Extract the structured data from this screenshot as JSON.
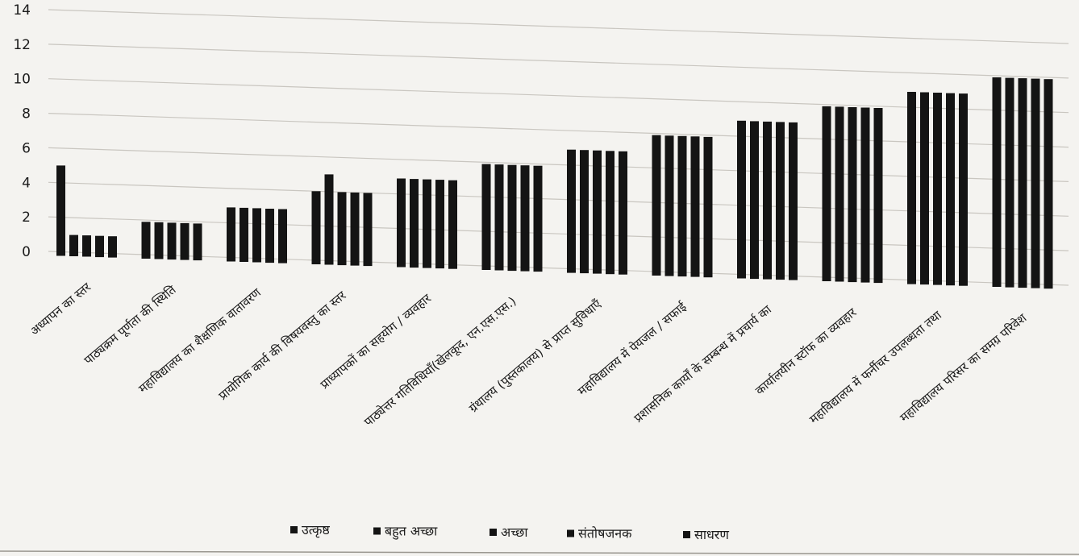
{
  "chart_data": {
    "type": "bar",
    "title": "",
    "xlabel": "",
    "ylabel": "",
    "ylim": [
      0,
      14
    ],
    "yticks": [
      0,
      2,
      4,
      6,
      8,
      10,
      12,
      14
    ],
    "grid": true,
    "legend_position": "bottom",
    "bar_color": "#141414",
    "categories": [
      "अध्यापन का स्तर",
      "पाठ्यक्रम पूर्णता की स्थिति",
      "महाविद्यालय का शैक्षणिक वातावरण",
      "प्रायोगिक कार्य की विषयवस्तु का स्तर",
      "प्राध्यापकों का सहयोग / व्यवहार",
      "पाठ्येत्तर गतिविधियाँ(खेलकूद, एन.एस.एस.)",
      "ग्रंथालय (पुस्तकालय) से प्राप्त सुविधाएँ",
      "महाविद्यालय में पेयजल / सफाई",
      "प्रशासनिक कार्यों के सम्बन्ध में प्रचार्य का",
      "कार्यालयीन स्टॉफ का व्यवहार",
      "महाविद्यालय में फर्नीचर उपलब्धता तथा",
      "महाविद्यालय परिसर का समग्र परिवेश"
    ],
    "series": [
      {
        "name": "उत्कृष्ठ",
        "values": [
          5,
          1.9,
          2.9,
          4,
          4.9,
          5.9,
          6.9,
          7.9,
          8.9,
          9.9,
          10.9,
          11.9
        ]
      },
      {
        "name": "बहुत अच्छा",
        "values": [
          1,
          1.9,
          2.9,
          5,
          4.9,
          5.9,
          6.9,
          7.9,
          8.9,
          9.9,
          10.9,
          11.9
        ]
      },
      {
        "name": "अच्छा",
        "values": [
          1,
          1.9,
          2.9,
          4,
          4.9,
          5.9,
          6.9,
          7.9,
          8.9,
          9.9,
          10.9,
          11.9
        ]
      },
      {
        "name": "संतोषजनक",
        "values": [
          1,
          1.9,
          2.9,
          4,
          4.9,
          5.9,
          6.9,
          7.9,
          8.9,
          9.9,
          10.9,
          11.9
        ]
      },
      {
        "name": "साधरण",
        "values": [
          1,
          1.9,
          2.9,
          4,
          4.9,
          5.9,
          6.9,
          7.9,
          8.9,
          9.9,
          10.9,
          11.9
        ]
      }
    ]
  }
}
